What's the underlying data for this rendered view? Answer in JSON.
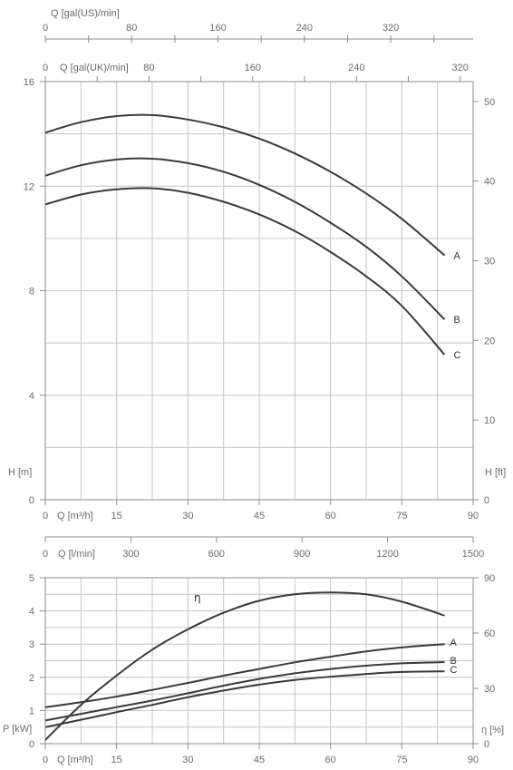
{
  "chart_data": [
    {
      "type": "line",
      "title": "",
      "x": [
        0,
        7.5,
        15,
        22.5,
        30,
        37.5,
        45,
        52.5,
        60,
        67.5,
        75,
        84
      ],
      "xlabel": "Q [m³/h]",
      "ylabel": "H [m]",
      "y2label": "H [ft]",
      "xlim": [
        0,
        90
      ],
      "ylim": [
        0,
        16
      ],
      "y2lim": [
        0,
        52.49
      ],
      "xticks": [
        "0",
        "15",
        "30",
        "45",
        "60",
        "75",
        "90"
      ],
      "yticks": [
        "0",
        "4",
        "8",
        "12",
        "16"
      ],
      "y2ticks": [
        "0",
        "10",
        "20",
        "30",
        "40",
        "50"
      ],
      "top_axes": [
        {
          "label": "Q [gal(US)/min]",
          "ticks": [
            "0",
            "80",
            "160",
            "240",
            "320"
          ],
          "max": 396.3
        },
        {
          "label": "Q [gal(UK)/min]",
          "ticks": [
            "0",
            "80",
            "160",
            "240",
            "320"
          ],
          "max": 330.0
        }
      ],
      "series": [
        {
          "name": "A",
          "values": [
            14.05,
            14.45,
            14.68,
            14.72,
            14.55,
            14.25,
            13.82,
            13.25,
            12.55,
            11.72,
            10.75,
            9.35
          ]
        },
        {
          "name": "B",
          "values": [
            12.4,
            12.8,
            13.02,
            13.05,
            12.88,
            12.55,
            12.05,
            11.4,
            10.6,
            9.68,
            8.55,
            6.9
          ]
        },
        {
          "name": "C",
          "values": [
            11.3,
            11.68,
            11.88,
            11.92,
            11.75,
            11.4,
            10.92,
            10.28,
            9.48,
            8.55,
            7.42,
            5.55
          ]
        }
      ],
      "grid": true
    },
    {
      "type": "line",
      "title": "",
      "x": [
        0,
        7.5,
        15,
        22.5,
        30,
        37.5,
        45,
        52.5,
        60,
        67.5,
        75,
        84
      ],
      "xlabel": "Q [m³/h]",
      "ylabel": "P [kW]",
      "y2label": "η [%]",
      "xlim": [
        0,
        90
      ],
      "ylim": [
        0,
        5
      ],
      "y2lim": [
        0,
        90
      ],
      "xticks": [
        "0",
        "15",
        "30",
        "45",
        "60",
        "75",
        "90"
      ],
      "yticks": [
        "0",
        "1",
        "2",
        "3",
        "4",
        "5"
      ],
      "y2ticks": [
        "0",
        "30",
        "60",
        "90"
      ],
      "top_axis": {
        "label": "Q [l/min]",
        "ticks": [
          "0",
          "300",
          "600",
          "900",
          "1200",
          "1500"
        ],
        "max": 1500
      },
      "series": [
        {
          "name": "A",
          "values": [
            1.1,
            1.25,
            1.42,
            1.62,
            1.83,
            2.05,
            2.25,
            2.45,
            2.62,
            2.78,
            2.9,
            3.0
          ]
        },
        {
          "name": "B",
          "values": [
            0.7,
            0.9,
            1.1,
            1.3,
            1.52,
            1.75,
            1.95,
            2.12,
            2.25,
            2.35,
            2.42,
            2.46
          ]
        },
        {
          "name": "C",
          "values": [
            0.5,
            0.72,
            0.95,
            1.17,
            1.4,
            1.6,
            1.78,
            1.92,
            2.02,
            2.1,
            2.16,
            2.18
          ]
        }
      ],
      "efficiency": {
        "name": "η",
        "values": [
          2,
          21,
          37,
          51,
          62,
          71,
          77.5,
          81,
          82,
          81,
          77,
          69.5
        ]
      },
      "grid": true
    }
  ]
}
